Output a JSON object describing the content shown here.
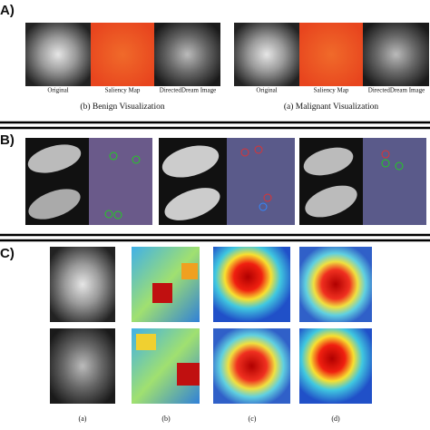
{
  "panel_a": {
    "label": "A)",
    "benign": {
      "image_labels": [
        "Original",
        "Saliency Map",
        "DirectedDream Image"
      ],
      "caption": "(b) Benign Visualization"
    },
    "malignant": {
      "image_labels": [
        "Original",
        "Saliency Map",
        "DirectedDream Image"
      ],
      "caption": "(a) Malignant Visualization"
    }
  },
  "panel_b": {
    "label": "B)"
  },
  "panel_c": {
    "label": "C)",
    "column_labels": [
      "(a)",
      "(b)",
      "(c)",
      "(d)"
    ]
  }
}
